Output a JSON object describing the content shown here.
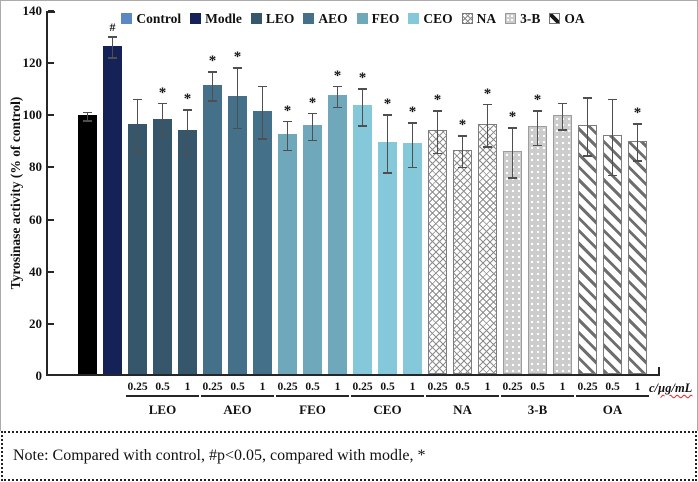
{
  "figure": {
    "y_axis": {
      "title": "Tyrosinase activity (% of control)",
      "ticks": [
        0,
        20,
        40,
        60,
        80,
        100,
        120,
        140
      ]
    },
    "x_axis": {
      "unit_prefix": "c/",
      "unit_suffix": "µg/mL"
    },
    "legend": [
      {
        "label": "Control",
        "color": "#5b87c3"
      },
      {
        "label": "Modle",
        "color": "#142257"
      },
      {
        "label": "LEO",
        "color": "#35566b"
      },
      {
        "label": "AEO",
        "color": "#44708a"
      },
      {
        "label": "FEO",
        "color": "#6fa7bb"
      },
      {
        "label": "CEO",
        "color": "#84c8da"
      },
      {
        "label": "NA",
        "pattern": "crosshatch"
      },
      {
        "label": "3-B",
        "pattern": "dots"
      },
      {
        "label": "OA",
        "pattern": "diagonal"
      }
    ],
    "note": "Note: Compared with control, #p<0.05, compared with modle, *"
  },
  "chart_data": {
    "type": "bar",
    "title": "",
    "ylabel": "Tyrosinase activity (% of control)",
    "xlabel": "c/µg/mL",
    "ylim": [
      0,
      140
    ],
    "grid": false,
    "legend_position": "top",
    "groups": [
      {
        "name": "Control",
        "fill": "#000000",
        "bars": [
          {
            "conc": "",
            "value": 99.5,
            "err": 1.5,
            "sig": ""
          }
        ]
      },
      {
        "name": "Modle",
        "fill": "#142257",
        "bars": [
          {
            "conc": "",
            "value": 126,
            "err": 4,
            "sig": "#"
          }
        ]
      },
      {
        "name": "LEO",
        "fill": "#35566b",
        "bars": [
          {
            "conc": "0.25",
            "value": 96,
            "err": 10,
            "sig": ""
          },
          {
            "conc": "0.5",
            "value": 98,
            "err": 6.5,
            "sig": "*"
          },
          {
            "conc": "1",
            "value": 93.5,
            "err": 8.5,
            "sig": "*"
          }
        ]
      },
      {
        "name": "AEO",
        "fill": "#44708a",
        "bars": [
          {
            "conc": "0.25",
            "value": 111,
            "err": 5.5,
            "sig": "*"
          },
          {
            "conc": "0.5",
            "value": 106.5,
            "err": 11.5,
            "sig": "*"
          },
          {
            "conc": "1",
            "value": 101,
            "err": 10,
            "sig": ""
          }
        ]
      },
      {
        "name": "FEO",
        "fill": "#6fa7bb",
        "bars": [
          {
            "conc": "0.25",
            "value": 92,
            "err": 5.5,
            "sig": "*"
          },
          {
            "conc": "0.5",
            "value": 95.5,
            "err": 5,
            "sig": "*"
          },
          {
            "conc": "1",
            "value": 107,
            "err": 4,
            "sig": "*"
          }
        ]
      },
      {
        "name": "CEO",
        "fill": "#84c8da",
        "bars": [
          {
            "conc": "0.25",
            "value": 103,
            "err": 7,
            "sig": "*"
          },
          {
            "conc": "0.5",
            "value": 89,
            "err": 11,
            "sig": "*"
          },
          {
            "conc": "1",
            "value": 88.5,
            "err": 8.5,
            "sig": "*"
          }
        ]
      },
      {
        "name": "NA",
        "pattern": "crosshatch",
        "bars": [
          {
            "conc": "0.25",
            "value": 93.5,
            "err": 8,
            "sig": "*"
          },
          {
            "conc": "0.5",
            "value": 86,
            "err": 6,
            "sig": "*"
          },
          {
            "conc": "1",
            "value": 96,
            "err": 8,
            "sig": "*"
          }
        ]
      },
      {
        "name": "3-B",
        "pattern": "dots",
        "bars": [
          {
            "conc": "0.25",
            "value": 85.5,
            "err": 9.5,
            "sig": "*"
          },
          {
            "conc": "0.5",
            "value": 95,
            "err": 6.5,
            "sig": "*"
          },
          {
            "conc": "1",
            "value": 99.5,
            "err": 5,
            "sig": ""
          }
        ]
      },
      {
        "name": "OA",
        "pattern": "diagonal",
        "bars": [
          {
            "conc": "0.25",
            "value": 95.5,
            "err": 11,
            "sig": ""
          },
          {
            "conc": "0.5",
            "value": 91.5,
            "err": 14.5,
            "sig": ""
          },
          {
            "conc": "1",
            "value": 89.5,
            "err": 7,
            "sig": "*"
          }
        ]
      }
    ]
  }
}
